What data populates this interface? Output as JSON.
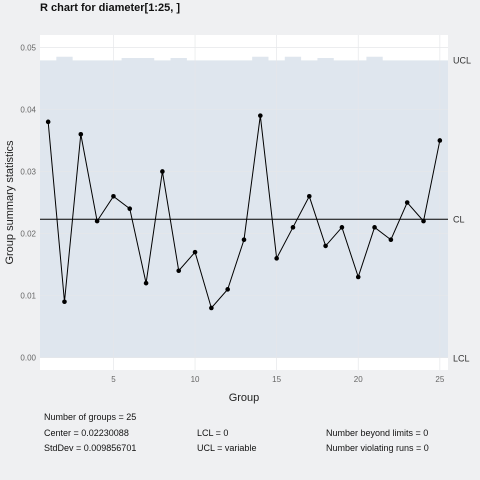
{
  "chart_data": {
    "type": "line",
    "title": "R chart for diameter[1:25, ]",
    "xlabel": "Group",
    "ylabel": "Group summary statistics",
    "xlim": [
      0.5,
      25.5
    ],
    "ylim": [
      -0.002,
      0.052
    ],
    "x_ticks": [
      5,
      10,
      15,
      20,
      25
    ],
    "y_ticks": [
      0.0,
      0.01,
      0.02,
      0.03,
      0.04,
      0.05
    ],
    "y_tick_labels": [
      "0.00",
      "0.01",
      "0.02",
      "0.03",
      "0.04",
      "0.05"
    ],
    "x": [
      1,
      2,
      3,
      4,
      5,
      6,
      7,
      8,
      9,
      10,
      11,
      12,
      13,
      14,
      15,
      16,
      17,
      18,
      19,
      20,
      21,
      22,
      23,
      24,
      25
    ],
    "values": [
      0.038,
      0.009,
      0.036,
      0.022,
      0.026,
      0.024,
      0.012,
      0.03,
      0.014,
      0.017,
      0.008,
      0.011,
      0.019,
      0.039,
      0.016,
      0.021,
      0.026,
      0.018,
      0.021,
      0.013,
      0.021,
      0.019,
      0.025,
      0.022,
      0.035
    ],
    "ucl": [
      0.0479,
      0.0485,
      0.0479,
      0.0479,
      0.0479,
      0.0483,
      0.0483,
      0.0479,
      0.0483,
      0.0479,
      0.0479,
      0.0479,
      0.0479,
      0.0485,
      0.0479,
      0.0485,
      0.0479,
      0.0483,
      0.0479,
      0.0479,
      0.0485,
      0.0479,
      0.0479,
      0.0479,
      0.0479
    ],
    "center": 0.0223,
    "lcl": 0.0,
    "grid": true,
    "limit_labels": {
      "ucl": "UCL",
      "cl": "CL",
      "lcl": "LCL"
    },
    "colors": {
      "band": "#dfe6ee",
      "line": "#000000",
      "point": "#000000",
      "plot_bg": "#ffffff",
      "grid": "#e6e7ea"
    }
  },
  "stats": {
    "groups": "Number of groups = 25",
    "center": "Center = 0.02230088",
    "stddev": "StdDev = 0.009856701",
    "lcl": "LCL = 0",
    "ucl": "UCL = variable",
    "beyond": "Number beyond limits = 0",
    "violating": "Number violating runs = 0"
  }
}
